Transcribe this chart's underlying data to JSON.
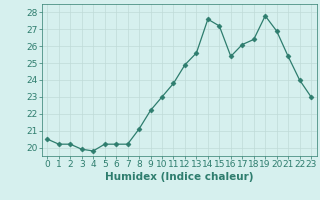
{
  "x": [
    0,
    1,
    2,
    3,
    4,
    5,
    6,
    7,
    8,
    9,
    10,
    11,
    12,
    13,
    14,
    15,
    16,
    17,
    18,
    19,
    20,
    21,
    22,
    23
  ],
  "y": [
    20.5,
    20.2,
    20.2,
    19.9,
    19.8,
    20.2,
    20.2,
    20.2,
    21.1,
    22.2,
    23.0,
    23.8,
    24.9,
    25.6,
    27.6,
    27.2,
    25.4,
    26.1,
    26.4,
    27.8,
    26.9,
    25.4,
    24.0,
    23.0
  ],
  "title": "",
  "xlabel": "Humidex (Indice chaleur)",
  "ylabel": "",
  "xlim": [
    -0.5,
    23.5
  ],
  "ylim": [
    19.5,
    28.5
  ],
  "yticks": [
    20,
    21,
    22,
    23,
    24,
    25,
    26,
    27,
    28
  ],
  "xticks": [
    0,
    1,
    2,
    3,
    4,
    5,
    6,
    7,
    8,
    9,
    10,
    11,
    12,
    13,
    14,
    15,
    16,
    17,
    18,
    19,
    20,
    21,
    22,
    23
  ],
  "line_color": "#2e7d6e",
  "marker": "D",
  "marker_size": 2.5,
  "bg_color": "#d6f0ee",
  "grid_color": "#c0dbd8",
  "tick_label_fontsize": 6.5,
  "xlabel_fontsize": 7.5
}
